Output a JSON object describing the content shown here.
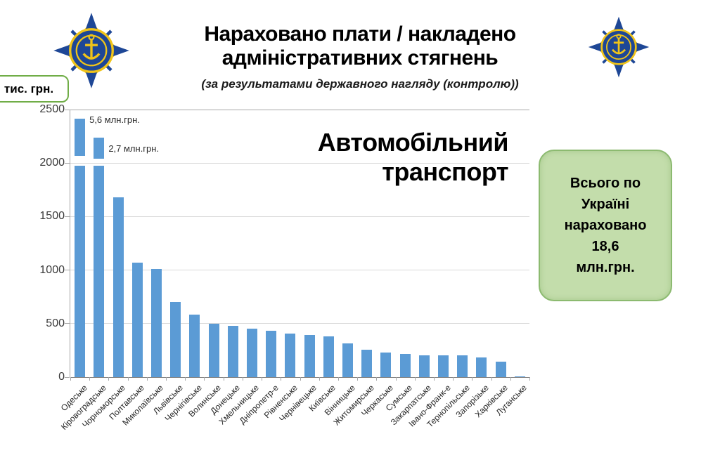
{
  "page": {
    "title_lines": [
      "Нараховано плати / накладено",
      "адміністративних стягнень"
    ],
    "subtitle": "(за результатами державного нагляду (контролю))",
    "y_unit_label": "тис. грн."
  },
  "icons": {
    "left_emblem": "transport-inspection-emblem",
    "right_emblem": "transport-inspection-emblem"
  },
  "colors": {
    "bar": "#5b9bd5",
    "grid": "#d9d9d9",
    "axis": "#a6a6a6",
    "summary_fill": "#c3ddab",
    "summary_border": "#8cba70",
    "unit_box_border": "#70ad47",
    "emblem_blue": "#1e4796",
    "emblem_yellow": "#f0c419"
  },
  "summary_box": {
    "lines": [
      "Всього по",
      "Україні",
      "нараховано",
      "18,6",
      "млн.грн."
    ]
  },
  "chart_data": {
    "type": "bar",
    "title": "Автомобільний транспорт",
    "big_label_lines": [
      "Автомобільний",
      "транспорт"
    ],
    "ylabel_unit": "тис. грн.",
    "ylim": [
      0,
      2500
    ],
    "yticks": [
      0,
      500,
      1000,
      1500,
      2000,
      2500
    ],
    "grid": true,
    "legend": "none",
    "categories": [
      "Одеське",
      "Кіровоградське",
      "Чорноморське",
      "Полтавське",
      "Миколаївське",
      "Львівське",
      "Чернігівське",
      "Волинське",
      "Донецьке",
      "Хмельницьке",
      "Дніпропетр-е",
      "Рівненське",
      "Чернівецьке",
      "Київське",
      "Вінницьке",
      "Житомирське",
      "Черкаське",
      "Сумське",
      "Закарпатське",
      "Івано-Франк-е",
      "Тернопільське",
      "Запорізьке",
      "Харківське",
      "Луганське"
    ],
    "values": [
      5600,
      2700,
      1680,
      1070,
      1010,
      700,
      585,
      500,
      478,
      456,
      434,
      408,
      395,
      378,
      312,
      255,
      232,
      214,
      205,
      204,
      204,
      182,
      142,
      6
    ],
    "clipped_bars": [
      {
        "index": 0,
        "annotation": "5,6 млн.грн.",
        "display_top": 2415,
        "break_low": 1975,
        "break_high": 2065,
        "label_dy": -6
      },
      {
        "index": 1,
        "annotation": "2,7 млн.грн.",
        "display_top": 2240,
        "break_low": 1975,
        "break_high": 2040,
        "label_dy": 8
      }
    ],
    "total_annotation": "Всього по Україні нараховано 18,6 млн.грн."
  }
}
